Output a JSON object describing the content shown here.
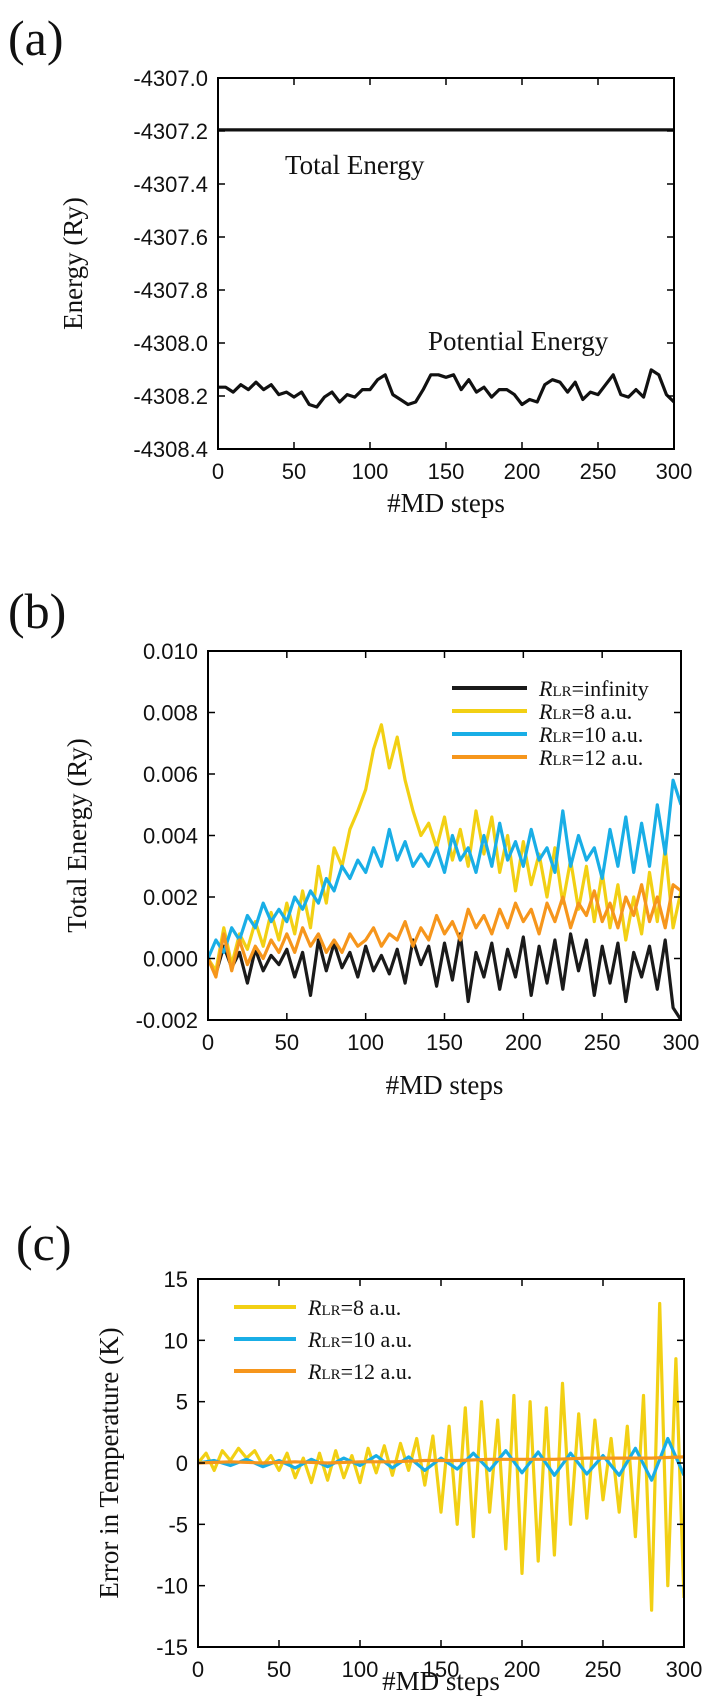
{
  "chart_data": [
    {
      "type": "line",
      "panel_label": "(a)",
      "xlabel": "#MD steps",
      "ylabel": "Energy (Ry)",
      "xlim": [
        0,
        300
      ],
      "ylim": [
        -4308.5,
        -4307.0
      ],
      "x_ticks": [
        "0",
        "50",
        "100",
        "150",
        "200",
        "250",
        "300"
      ],
      "y_ticks": [
        "-4307.0",
        "-4307.2",
        "-4307.4",
        "-4307.6",
        "-4307.8",
        "-4308.0",
        "-4308.2",
        "-4308.4"
      ],
      "grid": false,
      "annotations": [
        "Total Energy",
        "Potential Energy"
      ],
      "series": [
        {
          "color": "#111111",
          "x": [
            0,
            20,
            40,
            60,
            80,
            100,
            120,
            140,
            160,
            180,
            200,
            220,
            240,
            260,
            280,
            300
          ],
          "y": [
            -4307.21,
            -4307.21,
            -4307.21,
            -4307.21,
            -4307.21,
            -4307.21,
            -4307.21,
            -4307.21,
            -4307.21,
            -4307.21,
            -4307.21,
            -4307.21,
            -4307.21,
            -4307.21,
            -4307.21,
            -4307.21
          ]
        },
        {
          "color": "#111111",
          "x": [
            0,
            5,
            10,
            15,
            20,
            25,
            30,
            35,
            40,
            45,
            50,
            55,
            60,
            65,
            70,
            75,
            80,
            85,
            90,
            95,
            100,
            105,
            110,
            115,
            120,
            125,
            130,
            135,
            140,
            145,
            150,
            155,
            160,
            165,
            170,
            175,
            180,
            185,
            190,
            195,
            200,
            205,
            210,
            215,
            220,
            225,
            230,
            235,
            240,
            245,
            250,
            255,
            260,
            265,
            270,
            275,
            280,
            285,
            290,
            295,
            300
          ],
          "y": [
            -4308.25,
            -4308.25,
            -4308.27,
            -4308.24,
            -4308.26,
            -4308.23,
            -4308.26,
            -4308.24,
            -4308.28,
            -4308.27,
            -4308.29,
            -4308.27,
            -4308.32,
            -4308.33,
            -4308.29,
            -4308.27,
            -4308.31,
            -4308.28,
            -4308.29,
            -4308.26,
            -4308.26,
            -4308.22,
            -4308.2,
            -4308.28,
            -4308.3,
            -4308.32,
            -4308.31,
            -4308.26,
            -4308.2,
            -4308.2,
            -4308.21,
            -4308.2,
            -4308.26,
            -4308.22,
            -4308.27,
            -4308.25,
            -4308.29,
            -4308.26,
            -4308.26,
            -4308.28,
            -4308.32,
            -4308.3,
            -4308.31,
            -4308.24,
            -4308.22,
            -4308.23,
            -4308.27,
            -4308.23,
            -4308.3,
            -4308.27,
            -4308.28,
            -4308.24,
            -4308.2,
            -4308.28,
            -4308.29,
            -4308.26,
            -4308.29,
            -4308.18,
            -4308.2,
            -4308.28,
            -4308.31
          ]
        }
      ]
    },
    {
      "type": "line",
      "panel_label": "(b)",
      "xlabel": "#MD steps",
      "ylabel": "Total Energy (Ry)",
      "xlim": [
        0,
        300
      ],
      "ylim": [
        -0.002,
        0.01
      ],
      "x_ticks": [
        "0",
        "50",
        "100",
        "150",
        "200",
        "250",
        "300"
      ],
      "y_ticks": [
        "0.010",
        "0.008",
        "0.006",
        "0.004",
        "0.002",
        "0.000",
        "-0.002"
      ],
      "grid": false,
      "legend_position": "top-right",
      "series": [
        {
          "legend_r": "R",
          "legend_sub": "LR",
          "legend_rest": "=infinity",
          "color": "#1a1a1a",
          "x": [
            0,
            5,
            10,
            15,
            20,
            25,
            30,
            35,
            40,
            45,
            50,
            55,
            60,
            65,
            70,
            75,
            80,
            85,
            90,
            95,
            100,
            105,
            110,
            115,
            120,
            125,
            130,
            135,
            140,
            145,
            150,
            155,
            160,
            165,
            170,
            175,
            180,
            185,
            190,
            195,
            200,
            205,
            210,
            215,
            220,
            225,
            230,
            235,
            240,
            245,
            250,
            255,
            260,
            265,
            270,
            275,
            280,
            285,
            290,
            295,
            300
          ],
          "y": [
            0.0,
            -0.0005,
            0.0004,
            -0.0003,
            0.0002,
            -0.0008,
            0.0003,
            -0.0004,
            0.0001,
            -0.0002,
            0.0003,
            -0.0006,
            0.0002,
            -0.0012,
            0.0006,
            -0.0004,
            0.0005,
            -0.0003,
            0.0002,
            -0.0006,
            0.0004,
            -0.0004,
            0.0001,
            -0.0005,
            0.0003,
            -0.0008,
            0.0006,
            -0.0002,
            0.0004,
            -0.0009,
            0.0005,
            -0.0007,
            0.0008,
            -0.0014,
            0.0002,
            -0.0006,
            0.0005,
            -0.001,
            0.0003,
            -0.0006,
            0.0007,
            -0.0012,
            0.0004,
            -0.0008,
            0.0006,
            -0.001,
            0.0008,
            -0.0004,
            0.0006,
            -0.0012,
            0.0004,
            -0.0008,
            0.0005,
            -0.0014,
            0.0002,
            -0.0006,
            0.0004,
            -0.001,
            0.0006,
            -0.0016,
            -0.002
          ]
        },
        {
          "legend_r": "R",
          "legend_sub": "LR",
          "legend_rest": "=8 a.u.",
          "color": "#f2d014",
          "x": [
            0,
            5,
            10,
            15,
            20,
            25,
            30,
            35,
            40,
            45,
            50,
            55,
            60,
            65,
            70,
            75,
            80,
            85,
            90,
            95,
            100,
            105,
            110,
            115,
            120,
            125,
            130,
            135,
            140,
            145,
            150,
            155,
            160,
            165,
            170,
            175,
            180,
            185,
            190,
            195,
            200,
            205,
            210,
            215,
            220,
            225,
            230,
            235,
            240,
            245,
            250,
            255,
            260,
            265,
            270,
            275,
            280,
            285,
            290,
            295,
            300
          ],
          "y": [
            0.0,
            -0.0004,
            0.001,
            -0.0002,
            0.0008,
            0.0003,
            0.0012,
            0.0004,
            0.0015,
            0.0006,
            0.0018,
            0.0008,
            0.0022,
            0.001,
            0.003,
            0.0018,
            0.0036,
            0.003,
            0.0042,
            0.0048,
            0.0055,
            0.0068,
            0.0076,
            0.0062,
            0.0072,
            0.0058,
            0.0048,
            0.004,
            0.0044,
            0.0036,
            0.0046,
            0.0032,
            0.0042,
            0.003,
            0.0048,
            0.0034,
            0.0046,
            0.0028,
            0.004,
            0.0022,
            0.0038,
            0.0024,
            0.0034,
            0.002,
            0.0036,
            0.0018,
            0.0032,
            0.0016,
            0.003,
            0.0012,
            0.0028,
            0.001,
            0.0024,
            0.0006,
            0.002,
            0.0008,
            0.0028,
            0.0012,
            0.0036,
            0.001,
            0.0022
          ]
        },
        {
          "legend_r": "R",
          "legend_sub": "LR",
          "legend_rest": "=10 a.u.",
          "color": "#19aee6",
          "x": [
            0,
            5,
            10,
            15,
            20,
            25,
            30,
            35,
            40,
            45,
            50,
            55,
            60,
            65,
            70,
            75,
            80,
            85,
            90,
            95,
            100,
            105,
            110,
            115,
            120,
            125,
            130,
            135,
            140,
            145,
            150,
            155,
            160,
            165,
            170,
            175,
            180,
            185,
            190,
            195,
            200,
            205,
            210,
            215,
            220,
            225,
            230,
            235,
            240,
            245,
            250,
            255,
            260,
            265,
            270,
            275,
            280,
            285,
            290,
            295,
            300
          ],
          "y": [
            0.0,
            0.0006,
            0.0002,
            0.001,
            0.0006,
            0.0014,
            0.001,
            0.0018,
            0.0012,
            0.0016,
            0.0012,
            0.002,
            0.0016,
            0.0022,
            0.0018,
            0.0026,
            0.0022,
            0.003,
            0.0026,
            0.0032,
            0.0028,
            0.0036,
            0.003,
            0.0042,
            0.0032,
            0.0038,
            0.003,
            0.0034,
            0.003,
            0.0036,
            0.0028,
            0.004,
            0.0032,
            0.0036,
            0.0028,
            0.004,
            0.003,
            0.0044,
            0.0032,
            0.0038,
            0.003,
            0.0042,
            0.0032,
            0.0036,
            0.0028,
            0.0048,
            0.003,
            0.004,
            0.0032,
            0.0036,
            0.0026,
            0.0042,
            0.003,
            0.0046,
            0.0028,
            0.0044,
            0.003,
            0.005,
            0.0034,
            0.0058,
            0.005
          ]
        },
        {
          "legend_r": "R",
          "legend_sub": "LR",
          "legend_rest": "=12 a.u.",
          "color": "#f6961c",
          "x": [
            0,
            5,
            10,
            15,
            20,
            25,
            30,
            35,
            40,
            45,
            50,
            55,
            60,
            65,
            70,
            75,
            80,
            85,
            90,
            95,
            100,
            105,
            110,
            115,
            120,
            125,
            130,
            135,
            140,
            145,
            150,
            155,
            160,
            165,
            170,
            175,
            180,
            185,
            190,
            195,
            200,
            205,
            210,
            215,
            220,
            225,
            230,
            235,
            240,
            245,
            250,
            255,
            260,
            265,
            270,
            275,
            280,
            285,
            290,
            295,
            300
          ],
          "y": [
            0.0,
            -0.0006,
            0.0008,
            -0.0004,
            0.0006,
            -0.0002,
            0.0004,
            0.0,
            0.0006,
            0.0002,
            0.0008,
            0.0002,
            0.001,
            0.0004,
            0.0008,
            0.0002,
            0.0006,
            0.0002,
            0.0008,
            0.0004,
            0.0006,
            0.001,
            0.0004,
            0.0008,
            0.0006,
            0.0012,
            0.0004,
            0.001,
            0.0006,
            0.0014,
            0.0008,
            0.0012,
            0.0006,
            0.0016,
            0.001,
            0.0014,
            0.0008,
            0.0016,
            0.001,
            0.0018,
            0.0012,
            0.0016,
            0.0008,
            0.0018,
            0.0012,
            0.002,
            0.001,
            0.0018,
            0.0014,
            0.0022,
            0.0012,
            0.0018,
            0.001,
            0.002,
            0.0014,
            0.0024,
            0.0012,
            0.002,
            0.001,
            0.0024,
            0.0022
          ]
        }
      ]
    },
    {
      "type": "line",
      "panel_label": "(c)",
      "xlabel": "#MD steps",
      "ylabel": "Error in Temperature (K)",
      "xlim": [
        0,
        300
      ],
      "ylim": [
        -15,
        15
      ],
      "x_ticks": [
        "0",
        "50",
        "100",
        "150",
        "200",
        "250",
        "300"
      ],
      "y_ticks": [
        "15",
        "10",
        "5",
        "0",
        "-5",
        "-10",
        "-15"
      ],
      "grid": false,
      "legend_position": "top-left",
      "series": [
        {
          "legend_r": "R",
          "legend_sub": "LR",
          "legend_rest": "=8 a.u.",
          "color": "#f2d014",
          "x": [
            0,
            5,
            10,
            15,
            20,
            25,
            30,
            35,
            40,
            45,
            50,
            55,
            60,
            65,
            70,
            75,
            80,
            85,
            90,
            95,
            100,
            105,
            110,
            115,
            120,
            125,
            130,
            135,
            140,
            145,
            150,
            155,
            160,
            165,
            170,
            175,
            180,
            185,
            190,
            195,
            200,
            205,
            210,
            215,
            220,
            225,
            230,
            235,
            240,
            245,
            250,
            255,
            260,
            265,
            270,
            275,
            280,
            285,
            290,
            295,
            300
          ],
          "y": [
            0.0,
            0.8,
            -0.6,
            1.0,
            0.2,
            1.2,
            0.4,
            1.0,
            -0.2,
            0.6,
            -0.6,
            0.8,
            -1.2,
            0.4,
            -1.6,
            0.8,
            -1.4,
            1.0,
            -1.2,
            0.6,
            -1.6,
            1.2,
            -0.8,
            1.4,
            -1.0,
            1.6,
            -0.6,
            2.0,
            -1.8,
            2.2,
            -4.0,
            3.0,
            -5.0,
            4.5,
            -6.0,
            5.0,
            -4.0,
            3.5,
            -7.0,
            5.5,
            -9.0,
            5.0,
            -8.0,
            4.5,
            -7.5,
            6.5,
            -5.0,
            4.0,
            -4.5,
            3.5,
            -3.0,
            2.0,
            -4.0,
            3.0,
            -6.0,
            5.5,
            -12.0,
            13.0,
            -10.0,
            8.5,
            -11.0
          ]
        },
        {
          "legend_r": "R",
          "legend_sub": "LR",
          "legend_rest": "=10 a.u.",
          "color": "#19aee6",
          "x": [
            0,
            10,
            20,
            30,
            40,
            50,
            60,
            70,
            80,
            90,
            100,
            110,
            120,
            130,
            140,
            150,
            160,
            170,
            180,
            190,
            200,
            210,
            220,
            230,
            240,
            250,
            260,
            270,
            280,
            290,
            300
          ],
          "y": [
            0.0,
            0.2,
            -0.2,
            0.3,
            -0.3,
            0.2,
            -0.4,
            0.3,
            -0.3,
            0.4,
            -0.2,
            0.6,
            -0.4,
            0.5,
            -0.6,
            0.4,
            -0.5,
            0.8,
            -0.6,
            1.0,
            -0.8,
            0.9,
            -1.0,
            0.8,
            -0.9,
            0.6,
            -1.0,
            1.2,
            -1.4,
            2.0,
            -1.0
          ]
        },
        {
          "legend_r": "R",
          "legend_sub": "LR",
          "legend_rest": "=12 a.u.",
          "color": "#f6961c",
          "x": [
            0,
            20,
            40,
            60,
            80,
            100,
            120,
            140,
            160,
            180,
            200,
            220,
            240,
            260,
            280,
            300
          ],
          "y": [
            0.0,
            0.1,
            0.0,
            0.1,
            0.0,
            0.1,
            0.1,
            0.2,
            0.2,
            0.3,
            0.3,
            0.3,
            0.4,
            0.4,
            0.4,
            0.5
          ]
        }
      ]
    }
  ]
}
